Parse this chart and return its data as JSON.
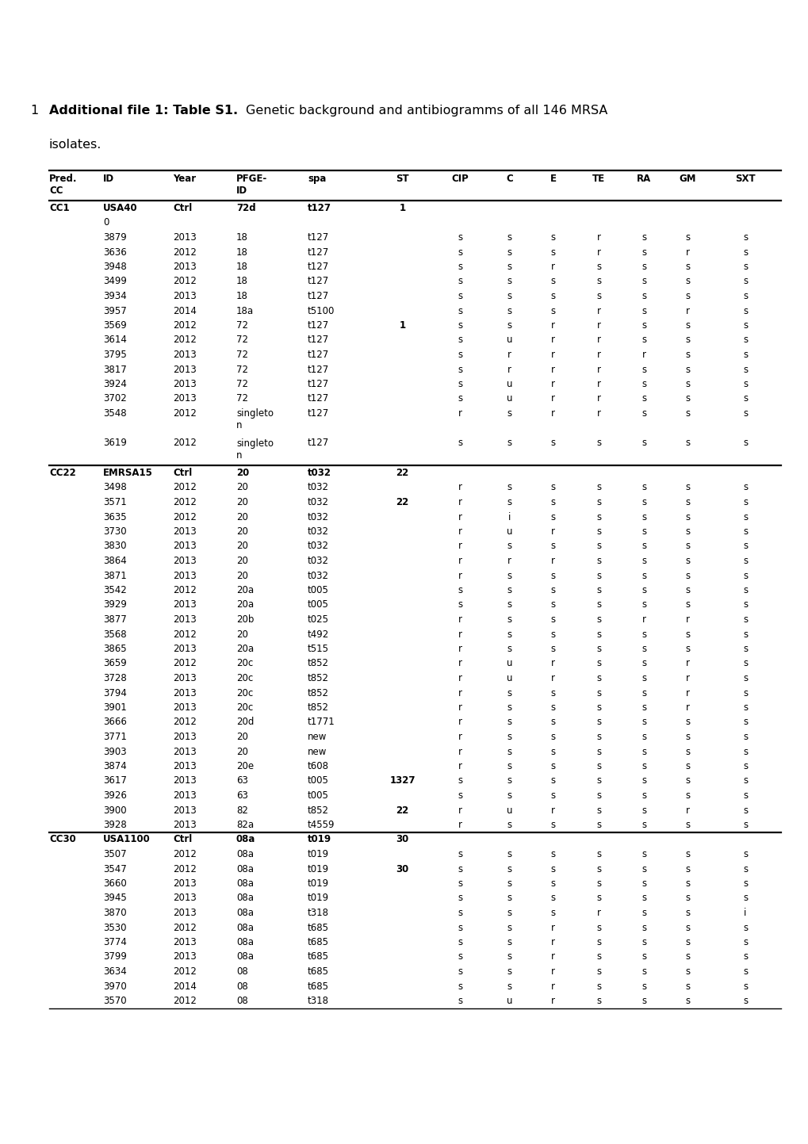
{
  "title_number": "1",
  "title_bold": "Additional file 1: Table S1.",
  "title_normal": " Genetic background and antibiogramms of all 146 MRSA",
  "subtitle": "isolates.",
  "headers": [
    "Pred.\nCC",
    "ID",
    "Year",
    "PFGE-\nID",
    "spa",
    "ST",
    "CIP",
    "C",
    "E",
    "TE",
    "RA",
    "GM",
    "SXT"
  ],
  "rows": [
    [
      "CC1",
      "USA40",
      "Ctrl",
      "72d",
      "t127",
      "1",
      "",
      "",
      "",
      "",
      "",
      "",
      ""
    ],
    [
      "",
      "0",
      "",
      "",
      "",
      "",
      "",
      "",
      "",
      "",
      "",
      "",
      ""
    ],
    [
      "",
      "3879",
      "2013",
      "18",
      "t127",
      "",
      "s",
      "s",
      "s",
      "r",
      "s",
      "s",
      "s"
    ],
    [
      "",
      "3636",
      "2012",
      "18",
      "t127",
      "",
      "s",
      "s",
      "s",
      "r",
      "s",
      "r",
      "s"
    ],
    [
      "",
      "3948",
      "2013",
      "18",
      "t127",
      "",
      "s",
      "s",
      "r",
      "s",
      "s",
      "s",
      "s"
    ],
    [
      "",
      "3499",
      "2012",
      "18",
      "t127",
      "",
      "s",
      "s",
      "s",
      "s",
      "s",
      "s",
      "s"
    ],
    [
      "",
      "3934",
      "2013",
      "18",
      "t127",
      "",
      "s",
      "s",
      "s",
      "s",
      "s",
      "s",
      "s"
    ],
    [
      "",
      "3957",
      "2014",
      "18a",
      "t5100",
      "",
      "s",
      "s",
      "s",
      "r",
      "s",
      "r",
      "s"
    ],
    [
      "",
      "3569",
      "2012",
      "72",
      "t127",
      "1",
      "s",
      "s",
      "r",
      "r",
      "s",
      "s",
      "s"
    ],
    [
      "",
      "3614",
      "2012",
      "72",
      "t127",
      "",
      "s",
      "u",
      "r",
      "r",
      "s",
      "s",
      "s"
    ],
    [
      "",
      "3795",
      "2013",
      "72",
      "t127",
      "",
      "s",
      "r",
      "r",
      "r",
      "r",
      "s",
      "s"
    ],
    [
      "",
      "3817",
      "2013",
      "72",
      "t127",
      "",
      "s",
      "r",
      "r",
      "r",
      "s",
      "s",
      "s"
    ],
    [
      "",
      "3924",
      "2013",
      "72",
      "t127",
      "",
      "s",
      "u",
      "r",
      "r",
      "s",
      "s",
      "s"
    ],
    [
      "",
      "3702",
      "2013",
      "72",
      "t127",
      "",
      "s",
      "u",
      "r",
      "r",
      "s",
      "s",
      "s"
    ],
    [
      "",
      "3548",
      "2012",
      "singleton",
      "t127",
      "",
      "r",
      "s",
      "r",
      "r",
      "s",
      "s",
      "s"
    ],
    [
      "",
      "3619",
      "2012",
      "singleton",
      "t127",
      "",
      "s",
      "s",
      "s",
      "s",
      "s",
      "s",
      "s"
    ],
    [
      "CC22",
      "EMRSA15",
      "Ctrl",
      "20",
      "t032",
      "22",
      "",
      "",
      "",
      "",
      "",
      "",
      ""
    ],
    [
      "",
      "3498",
      "2012",
      "20",
      "t032",
      "",
      "r",
      "s",
      "s",
      "s",
      "s",
      "s",
      "s"
    ],
    [
      "",
      "3571",
      "2012",
      "20",
      "t032",
      "22",
      "r",
      "s",
      "s",
      "s",
      "s",
      "s",
      "s"
    ],
    [
      "",
      "3635",
      "2012",
      "20",
      "t032",
      "",
      "r",
      "i",
      "s",
      "s",
      "s",
      "s",
      "s"
    ],
    [
      "",
      "3730",
      "2013",
      "20",
      "t032",
      "",
      "r",
      "u",
      "r",
      "s",
      "s",
      "s",
      "s"
    ],
    [
      "",
      "3830",
      "2013",
      "20",
      "t032",
      "",
      "r",
      "s",
      "s",
      "s",
      "s",
      "s",
      "s"
    ],
    [
      "",
      "3864",
      "2013",
      "20",
      "t032",
      "",
      "r",
      "r",
      "r",
      "s",
      "s",
      "s",
      "s"
    ],
    [
      "",
      "3871",
      "2013",
      "20",
      "t032",
      "",
      "r",
      "s",
      "s",
      "s",
      "s",
      "s",
      "s"
    ],
    [
      "",
      "3542",
      "2012",
      "20a",
      "t005",
      "",
      "s",
      "s",
      "s",
      "s",
      "s",
      "s",
      "s"
    ],
    [
      "",
      "3929",
      "2013",
      "20a",
      "t005",
      "",
      "s",
      "s",
      "s",
      "s",
      "s",
      "s",
      "s"
    ],
    [
      "",
      "3877",
      "2013",
      "20b",
      "t025",
      "",
      "r",
      "s",
      "s",
      "s",
      "r",
      "r",
      "s"
    ],
    [
      "",
      "3568",
      "2012",
      "20",
      "t492",
      "",
      "r",
      "s",
      "s",
      "s",
      "s",
      "s",
      "s"
    ],
    [
      "",
      "3865",
      "2013",
      "20a",
      "t515",
      "",
      "r",
      "s",
      "s",
      "s",
      "s",
      "s",
      "s"
    ],
    [
      "",
      "3659",
      "2012",
      "20c",
      "t852",
      "",
      "r",
      "u",
      "r",
      "s",
      "s",
      "r",
      "s"
    ],
    [
      "",
      "3728",
      "2013",
      "20c",
      "t852",
      "",
      "r",
      "u",
      "r",
      "s",
      "s",
      "r",
      "s"
    ],
    [
      "",
      "3794",
      "2013",
      "20c",
      "t852",
      "",
      "r",
      "s",
      "s",
      "s",
      "s",
      "r",
      "s"
    ],
    [
      "",
      "3901",
      "2013",
      "20c",
      "t852",
      "",
      "r",
      "s",
      "s",
      "s",
      "s",
      "r",
      "s"
    ],
    [
      "",
      "3666",
      "2012",
      "20d",
      "t1771",
      "",
      "r",
      "s",
      "s",
      "s",
      "s",
      "s",
      "s"
    ],
    [
      "",
      "3771",
      "2013",
      "20",
      "new",
      "",
      "r",
      "s",
      "s",
      "s",
      "s",
      "s",
      "s"
    ],
    [
      "",
      "3903",
      "2013",
      "20",
      "new",
      "",
      "r",
      "s",
      "s",
      "s",
      "s",
      "s",
      "s"
    ],
    [
      "",
      "3874",
      "2013",
      "20e",
      "t608",
      "",
      "r",
      "s",
      "s",
      "s",
      "s",
      "s",
      "s"
    ],
    [
      "",
      "3617",
      "2013",
      "63",
      "t005",
      "1327",
      "s",
      "s",
      "s",
      "s",
      "s",
      "s",
      "s"
    ],
    [
      "",
      "3926",
      "2013",
      "63",
      "t005",
      "",
      "s",
      "s",
      "s",
      "s",
      "s",
      "s",
      "s"
    ],
    [
      "",
      "3900",
      "2013",
      "82",
      "t852",
      "22",
      "r",
      "u",
      "r",
      "s",
      "s",
      "r",
      "s"
    ],
    [
      "",
      "3928",
      "2013",
      "82a",
      "t4559",
      "",
      "r",
      "s",
      "s",
      "s",
      "s",
      "s",
      "s"
    ],
    [
      "CC30",
      "USA1100",
      "Ctrl",
      "08a",
      "t019",
      "30",
      "",
      "",
      "",
      "",
      "",
      "",
      ""
    ],
    [
      "",
      "3507",
      "2012",
      "08a",
      "t019",
      "",
      "s",
      "s",
      "s",
      "s",
      "s",
      "s",
      "s"
    ],
    [
      "",
      "3547",
      "2012",
      "08a",
      "t019",
      "30",
      "s",
      "s",
      "s",
      "s",
      "s",
      "s",
      "s"
    ],
    [
      "",
      "3660",
      "2013",
      "08a",
      "t019",
      "",
      "s",
      "s",
      "s",
      "s",
      "s",
      "s",
      "s"
    ],
    [
      "",
      "3945",
      "2013",
      "08a",
      "t019",
      "",
      "s",
      "s",
      "s",
      "s",
      "s",
      "s",
      "s"
    ],
    [
      "",
      "3870",
      "2013",
      "08a",
      "t318",
      "",
      "s",
      "s",
      "s",
      "r",
      "s",
      "s",
      "i"
    ],
    [
      "",
      "3530",
      "2012",
      "08a",
      "t685",
      "",
      "s",
      "s",
      "r",
      "s",
      "s",
      "s",
      "s"
    ],
    [
      "",
      "3774",
      "2013",
      "08a",
      "t685",
      "",
      "s",
      "s",
      "r",
      "s",
      "s",
      "s",
      "s"
    ],
    [
      "",
      "3799",
      "2013",
      "08a",
      "t685",
      "",
      "s",
      "s",
      "r",
      "s",
      "s",
      "s",
      "s"
    ],
    [
      "",
      "3634",
      "2012",
      "08",
      "t685",
      "",
      "s",
      "s",
      "r",
      "s",
      "s",
      "s",
      "s"
    ],
    [
      "",
      "3970",
      "2014",
      "08",
      "t685",
      "",
      "s",
      "s",
      "r",
      "s",
      "s",
      "s",
      "s"
    ],
    [
      "",
      "3570",
      "2012",
      "08",
      "t318",
      "",
      "s",
      "u",
      "r",
      "s",
      "s",
      "s",
      "s"
    ]
  ],
  "bold_st_values": [
    "1",
    "22",
    "30",
    "1327"
  ],
  "cc_section_rows": [
    0,
    16,
    41
  ],
  "background_color": "#ffffff",
  "font_size": 8.5
}
